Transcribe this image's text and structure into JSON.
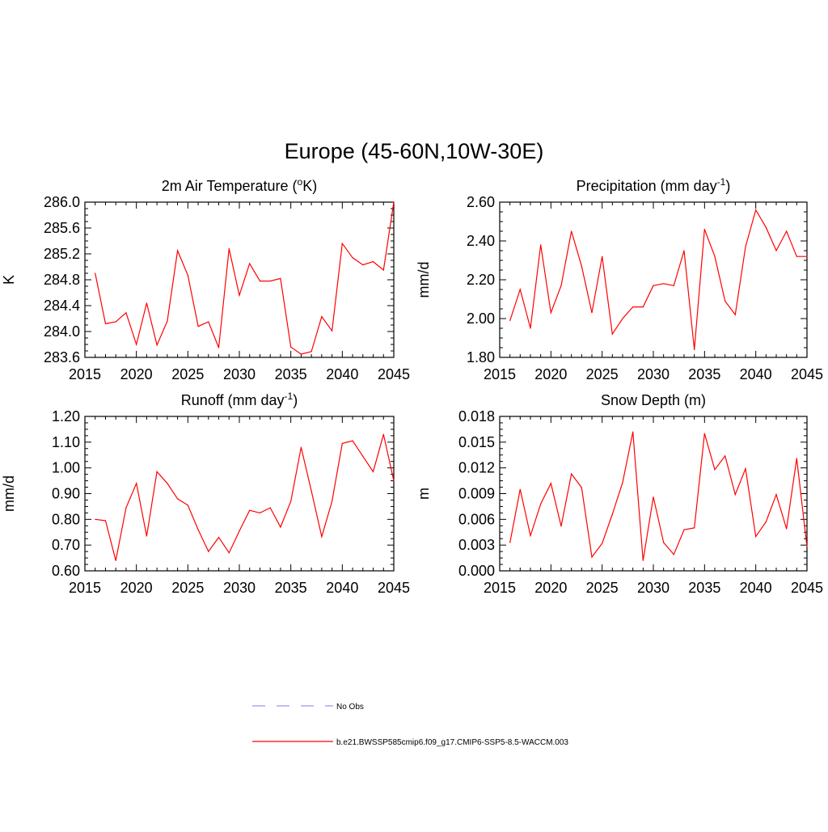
{
  "page": {
    "title": "Europe (45-60N,10W-30E)"
  },
  "colors": {
    "series": "#ff0000",
    "obs": "#9999ee",
    "axis": "#000000"
  },
  "legend": {
    "entries": [
      {
        "name": "No Obs",
        "style": "dashed",
        "color": "#9999ee"
      },
      {
        "name": "b.e21.BWSSP585cmip6.f09_g17.CMIP6-SSP5-8.5-WACCM.003",
        "style": "solid",
        "color": "#ff0000"
      }
    ]
  },
  "chart_data": [
    {
      "type": "line",
      "title": "2m Air Temperature (",
      "title_sup": "o",
      "title_after": "K)",
      "xlabel": "",
      "ylabel": "K",
      "xlim": [
        2015,
        2045
      ],
      "ylim": [
        283.6,
        286.0
      ],
      "xticks": [
        "2015",
        "2020",
        "2025",
        "2030",
        "2035",
        "2040",
        "2045"
      ],
      "yticks": [
        "283.6",
        "284.0",
        "284.4",
        "284.8",
        "285.2",
        "285.6",
        "286.0"
      ],
      "x": [
        2016,
        2017,
        2018,
        2019,
        2020,
        2021,
        2022,
        2023,
        2024,
        2025,
        2026,
        2027,
        2028,
        2029,
        2030,
        2031,
        2032,
        2033,
        2034,
        2035,
        2036,
        2037,
        2038,
        2039,
        2040,
        2041,
        2042,
        2043,
        2044,
        2045
      ],
      "series": [
        {
          "name": "b.e21.BWSSP585cmip6.f09_g17.CMIP6-SSP5-8.5-WACCM.003",
          "values": [
            284.9,
            284.12,
            284.15,
            284.29,
            283.8,
            284.44,
            283.79,
            284.16,
            285.25,
            284.87,
            284.08,
            284.15,
            283.75,
            285.28,
            284.56,
            285.05,
            284.78,
            284.78,
            284.82,
            283.76,
            283.65,
            283.69,
            284.23,
            284.01,
            285.36,
            285.14,
            285.03,
            285.08,
            284.95,
            286.0
          ]
        }
      ]
    },
    {
      "type": "line",
      "title": "Precipitation (mm day",
      "title_sup": "-1",
      "title_after": ")",
      "xlabel": "",
      "ylabel": "mm/d",
      "xlim": [
        2015,
        2045
      ],
      "ylim": [
        1.8,
        2.6
      ],
      "xticks": [
        "2015",
        "2020",
        "2025",
        "2030",
        "2035",
        "2040",
        "2045"
      ],
      "yticks": [
        "1.80",
        "2.00",
        "2.20",
        "2.40",
        "2.60"
      ],
      "x": [
        2016,
        2017,
        2018,
        2019,
        2020,
        2021,
        2022,
        2023,
        2024,
        2025,
        2026,
        2027,
        2028,
        2029,
        2030,
        2031,
        2032,
        2033,
        2034,
        2035,
        2036,
        2037,
        2038,
        2039,
        2040,
        2041,
        2042,
        2043,
        2044,
        2045
      ],
      "series": [
        {
          "name": "b.e21.BWSSP585cmip6.f09_g17.CMIP6-SSP5-8.5-WACCM.003",
          "values": [
            1.99,
            2.15,
            1.95,
            2.38,
            2.03,
            2.17,
            2.45,
            2.27,
            2.03,
            2.32,
            1.92,
            2.0,
            2.06,
            2.06,
            2.17,
            2.18,
            2.17,
            2.35,
            1.84,
            2.46,
            2.32,
            2.09,
            2.02,
            2.37,
            2.56,
            2.47,
            2.35,
            2.45,
            2.32,
            2.32
          ]
        }
      ]
    },
    {
      "type": "line",
      "title": "Runoff (mm day",
      "title_sup": "-1",
      "title_after": ")",
      "xlabel": "",
      "ylabel": "mm/d",
      "xlim": [
        2015,
        2045
      ],
      "ylim": [
        0.6,
        1.2
      ],
      "xticks": [
        "2015",
        "2020",
        "2025",
        "2030",
        "2035",
        "2040",
        "2045"
      ],
      "yticks": [
        "0.60",
        "0.70",
        "0.80",
        "0.90",
        "1.00",
        "1.10",
        "1.20"
      ],
      "x": [
        2016,
        2017,
        2018,
        2019,
        2020,
        2021,
        2022,
        2023,
        2024,
        2025,
        2026,
        2027,
        2028,
        2029,
        2030,
        2031,
        2032,
        2033,
        2034,
        2035,
        2036,
        2037,
        2038,
        2039,
        2040,
        2041,
        2042,
        2043,
        2044,
        2045
      ],
      "series": [
        {
          "name": "b.e21.BWSSP585cmip6.f09_g17.CMIP6-SSP5-8.5-WACCM.003",
          "values": [
            0.8,
            0.795,
            0.64,
            0.845,
            0.94,
            0.735,
            0.985,
            0.94,
            0.88,
            0.855,
            0.76,
            0.675,
            0.73,
            0.67,
            0.755,
            0.835,
            0.825,
            0.845,
            0.77,
            0.87,
            1.08,
            0.91,
            0.733,
            0.87,
            1.095,
            1.105,
            1.045,
            0.985,
            1.13,
            0.95
          ]
        }
      ]
    },
    {
      "type": "line",
      "title": "Snow Depth (m)",
      "title_sup": "",
      "title_after": "",
      "xlabel": "",
      "ylabel": "m",
      "xlim": [
        2015,
        2045
      ],
      "ylim": [
        0.0,
        0.018
      ],
      "xticks": [
        "2015",
        "2020",
        "2025",
        "2030",
        "2035",
        "2040",
        "2045"
      ],
      "yticks": [
        "0.000",
        "0.003",
        "0.006",
        "0.009",
        "0.012",
        "0.015",
        "0.018"
      ],
      "x": [
        2016,
        2017,
        2018,
        2019,
        2020,
        2021,
        2022,
        2023,
        2024,
        2025,
        2026,
        2027,
        2028,
        2029,
        2030,
        2031,
        2032,
        2033,
        2034,
        2035,
        2036,
        2037,
        2038,
        2039,
        2040,
        2041,
        2042,
        2043,
        2044,
        2045
      ],
      "series": [
        {
          "name": "b.e21.BWSSP585cmip6.f09_g17.CMIP6-SSP5-8.5-WACCM.003",
          "values": [
            0.0033,
            0.0095,
            0.0041,
            0.0078,
            0.0102,
            0.0052,
            0.0113,
            0.0097,
            0.0016,
            0.0032,
            0.0066,
            0.0103,
            0.0162,
            0.0012,
            0.0086,
            0.0033,
            0.0019,
            0.0048,
            0.005,
            0.016,
            0.0118,
            0.0134,
            0.0089,
            0.0119,
            0.004,
            0.0057,
            0.0089,
            0.0049,
            0.0131,
            0.0028
          ]
        }
      ]
    }
  ]
}
